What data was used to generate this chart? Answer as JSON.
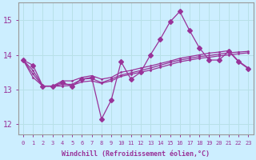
{
  "xlabel": "Windchill (Refroidissement éolien,°C)",
  "bg_color": "#cceeff",
  "grid_color": "#b8e0e8",
  "line_color": "#993399",
  "markersize": 3,
  "xlim": [
    -0.5,
    23.5
  ],
  "ylim": [
    11.7,
    15.5
  ],
  "yticks": [
    12,
    13,
    14,
    15
  ],
  "xtick_labels": [
    "0",
    "1",
    "2",
    "3",
    "4",
    "5",
    "6",
    "7",
    "8",
    "9",
    "10",
    "11",
    "12",
    "13",
    "14",
    "15",
    "16",
    "17",
    "18",
    "19",
    "20",
    "21",
    "22",
    "23"
  ],
  "series": {
    "main": [
      13.85,
      13.7,
      13.1,
      13.1,
      13.2,
      13.1,
      13.3,
      13.35,
      12.15,
      12.7,
      13.8,
      13.3,
      13.5,
      14.0,
      14.45,
      14.95,
      15.25,
      14.7,
      14.2,
      13.85,
      13.85,
      14.1,
      13.8,
      13.6
    ],
    "trend1": [
      13.85,
      13.55,
      13.1,
      13.1,
      13.25,
      13.25,
      13.35,
      13.4,
      13.3,
      13.35,
      13.5,
      13.55,
      13.62,
      13.68,
      13.75,
      13.82,
      13.9,
      13.95,
      14.0,
      14.05,
      14.08,
      14.12,
      13.82,
      13.62
    ],
    "trend2": [
      13.85,
      13.45,
      13.1,
      13.1,
      13.15,
      13.15,
      13.3,
      13.32,
      13.2,
      13.3,
      13.42,
      13.48,
      13.55,
      13.62,
      13.7,
      13.78,
      13.85,
      13.9,
      13.95,
      13.98,
      14.02,
      14.06,
      14.08,
      14.1
    ],
    "trend3": [
      13.85,
      13.35,
      13.1,
      13.1,
      13.1,
      13.12,
      13.22,
      13.25,
      13.18,
      13.25,
      13.38,
      13.44,
      13.5,
      13.56,
      13.64,
      13.72,
      13.8,
      13.85,
      13.9,
      13.93,
      13.97,
      14.0,
      14.03,
      14.06
    ]
  }
}
